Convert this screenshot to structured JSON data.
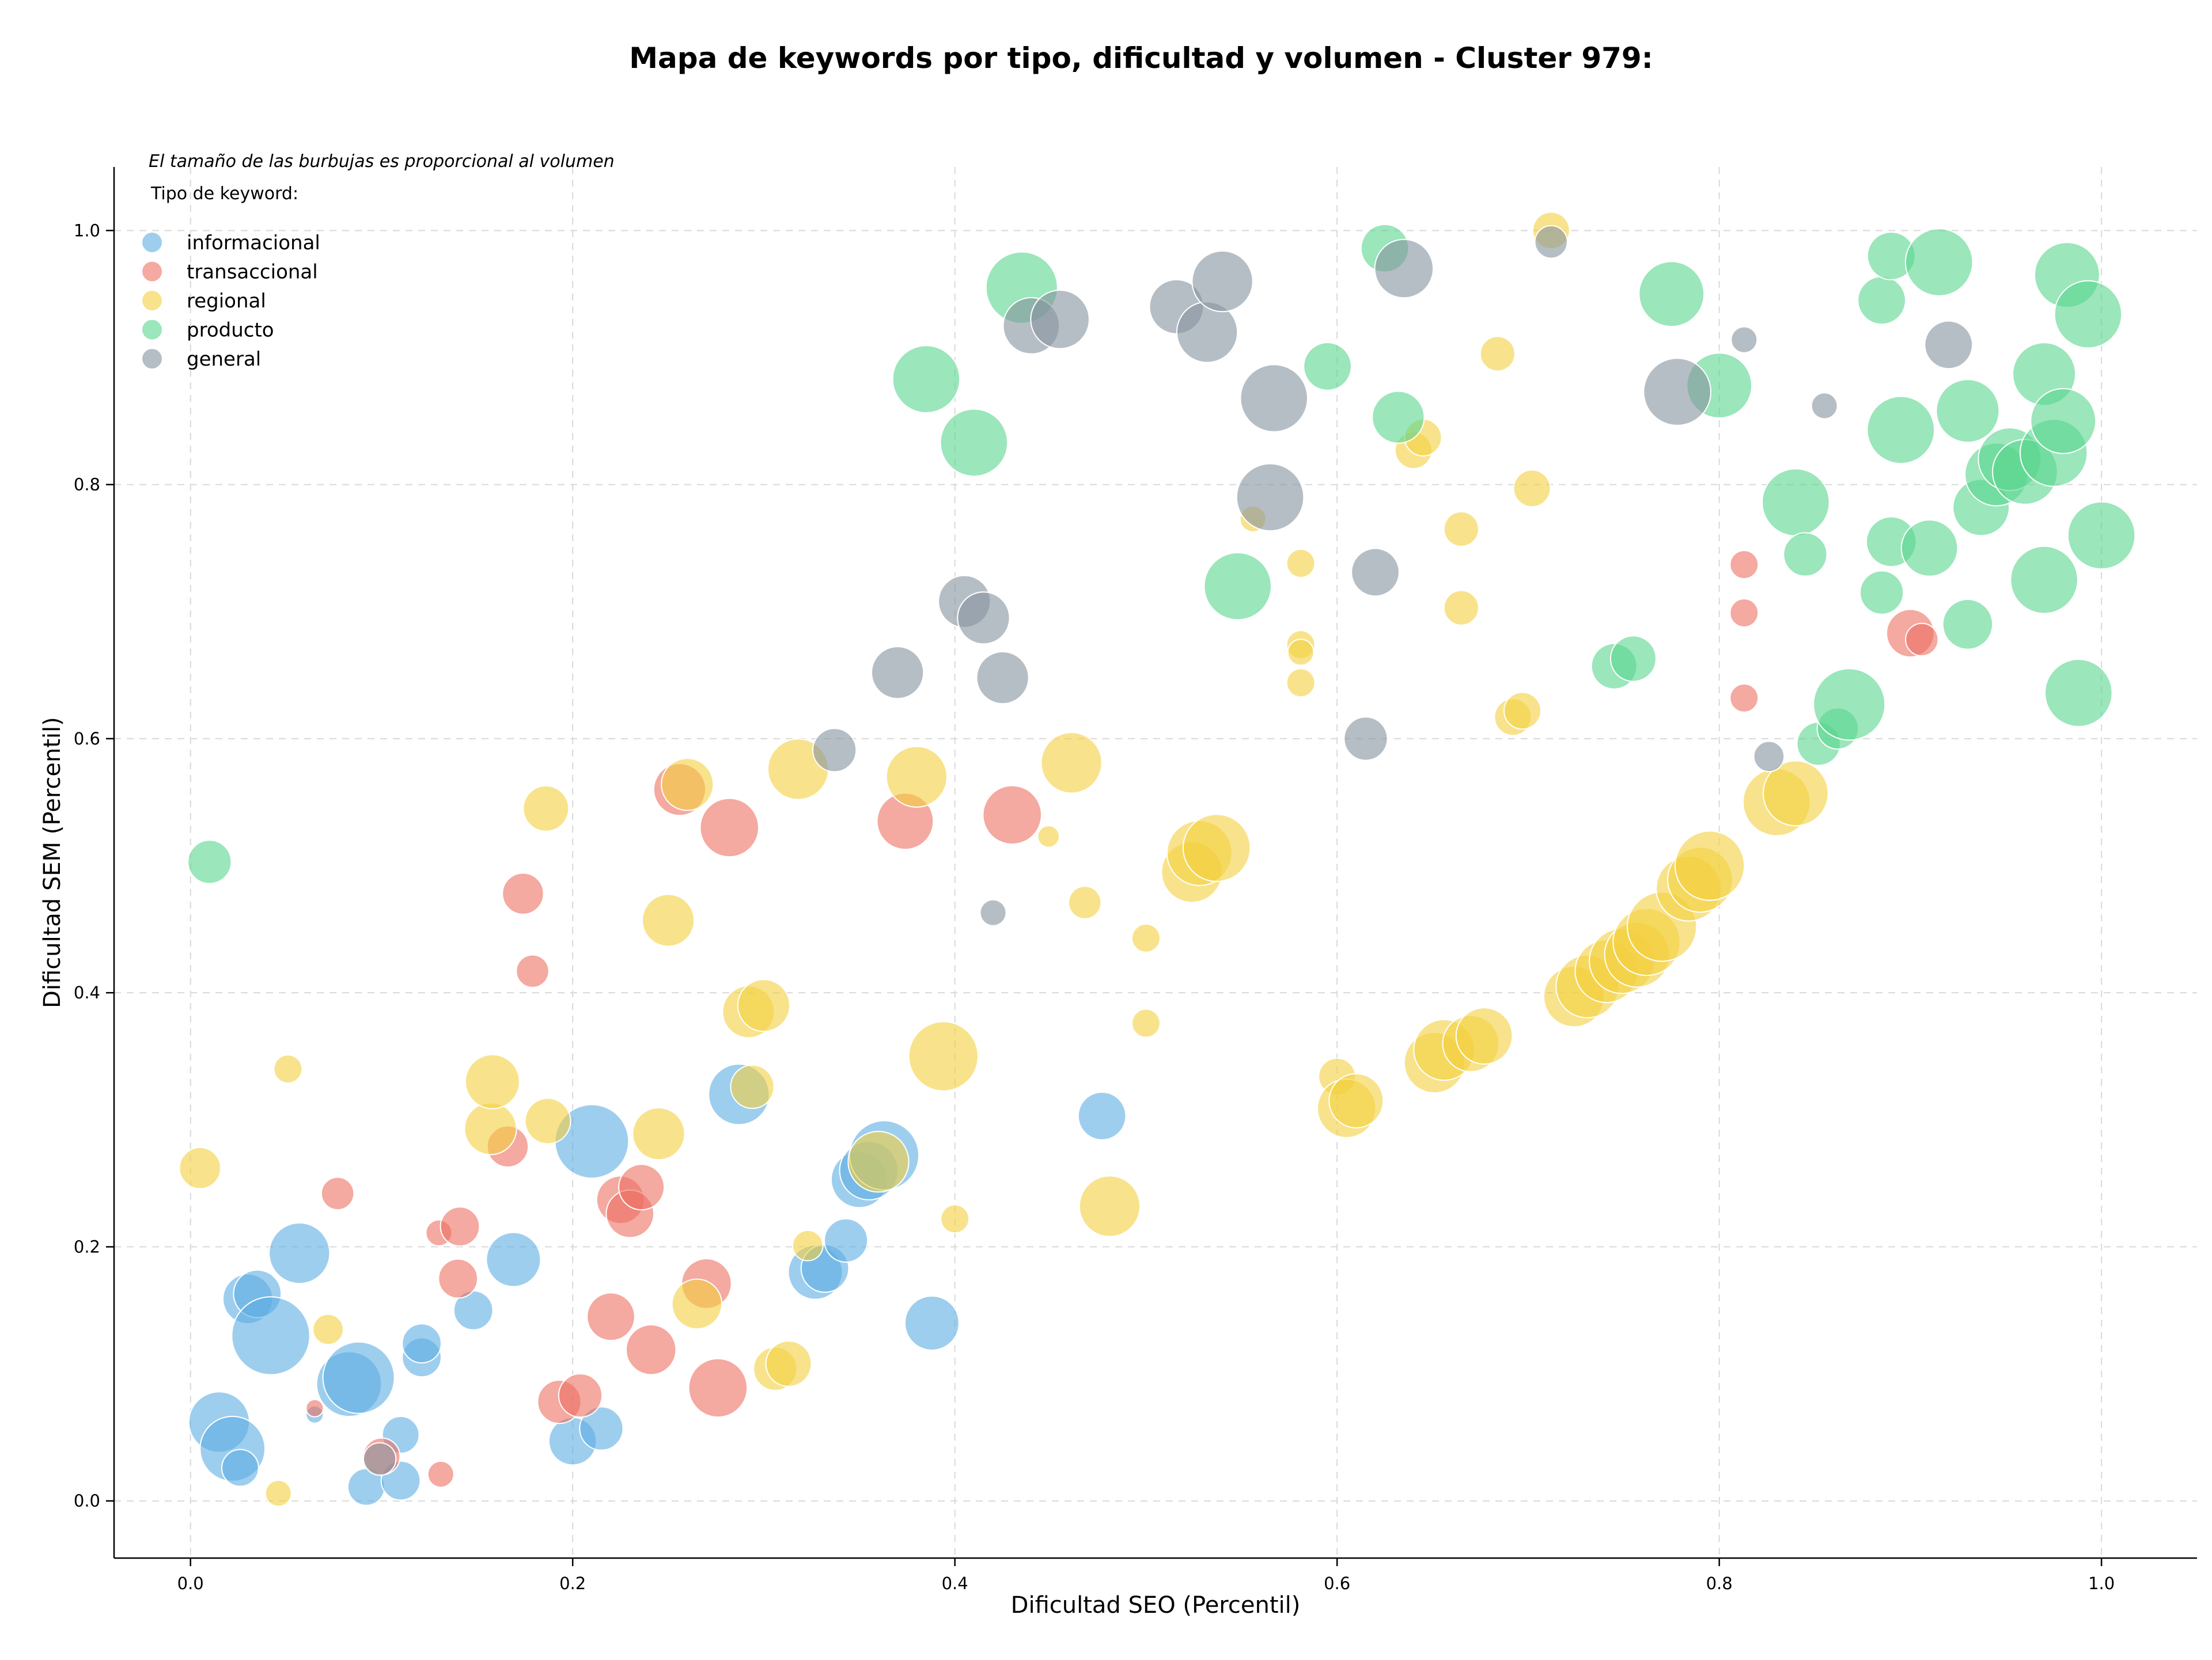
{
  "chart_data": {
    "type": "scatter",
    "title": "Mapa de keywords por tipo, dificultad y volumen - Cluster 979:",
    "xlabel": "Dificultad SEO (Percentil)",
    "ylabel": "Dificultad SEM (Percentil)",
    "xlim": [
      -0.04,
      1.05
    ],
    "ylim": [
      -0.045,
      1.05
    ],
    "x_ticks": [
      "0.0",
      "0.2",
      "0.4",
      "0.6",
      "0.8",
      "1.0"
    ],
    "y_ticks": [
      "0.0",
      "0.2",
      "0.4",
      "0.6",
      "0.8",
      "1.0"
    ],
    "x_tick_values": [
      0,
      0.2,
      0.4,
      0.6,
      0.8,
      1.0
    ],
    "y_tick_values": [
      0,
      0.2,
      0.4,
      0.6,
      0.8,
      1.0
    ],
    "grid": true,
    "size_note": "El tamaño de las burbujas es proporcional al volumen",
    "legend_title": "Tipo de keyword:",
    "legend_position": "top-left",
    "series": [
      {
        "name": "informacional",
        "color": "#5DADE2",
        "points": [
          [
            0.015,
            0.062,
            28
          ],
          [
            0.022,
            0.041,
            30
          ],
          [
            0.026,
            0.026,
            17
          ],
          [
            0.03,
            0.159,
            23
          ],
          [
            0.035,
            0.163,
            22
          ],
          [
            0.042,
            0.13,
            36
          ],
          [
            0.057,
            0.195,
            28
          ],
          [
            0.065,
            0.068,
            8
          ],
          [
            0.083,
            0.092,
            30
          ],
          [
            0.088,
            0.097,
            33
          ],
          [
            0.092,
            0.011,
            17
          ],
          [
            0.11,
            0.052,
            17
          ],
          [
            0.11,
            0.016,
            18
          ],
          [
            0.121,
            0.113,
            18
          ],
          [
            0.121,
            0.124,
            18
          ],
          [
            0.148,
            0.15,
            18
          ],
          [
            0.169,
            0.19,
            25
          ],
          [
            0.2,
            0.047,
            22
          ],
          [
            0.21,
            0.283,
            34
          ],
          [
            0.215,
            0.057,
            20
          ],
          [
            0.287,
            0.32,
            28
          ],
          [
            0.327,
            0.18,
            25
          ],
          [
            0.332,
            0.183,
            22
          ],
          [
            0.343,
            0.205,
            20
          ],
          [
            0.35,
            0.253,
            26
          ],
          [
            0.355,
            0.26,
            27
          ],
          [
            0.363,
            0.272,
            32
          ],
          [
            0.388,
            0.14,
            25
          ],
          [
            0.477,
            0.303,
            22
          ]
        ]
      },
      {
        "name": "transaccional",
        "color": "#EC7063",
        "points": [
          [
            0.065,
            0.073,
            8
          ],
          [
            0.077,
            0.242,
            15
          ],
          [
            0.1,
            0.035,
            17
          ],
          [
            0.13,
            0.211,
            12
          ],
          [
            0.131,
            0.021,
            12
          ],
          [
            0.14,
            0.175,
            18
          ],
          [
            0.141,
            0.216,
            18
          ],
          [
            0.166,
            0.279,
            19
          ],
          [
            0.174,
            0.478,
            19
          ],
          [
            0.179,
            0.417,
            15
          ],
          [
            0.193,
            0.078,
            20
          ],
          [
            0.204,
            0.083,
            20
          ],
          [
            0.22,
            0.145,
            22
          ],
          [
            0.225,
            0.237,
            22
          ],
          [
            0.23,
            0.226,
            22
          ],
          [
            0.236,
            0.247,
            21
          ],
          [
            0.241,
            0.119,
            23
          ],
          [
            0.256,
            0.56,
            24
          ],
          [
            0.27,
            0.171,
            23
          ],
          [
            0.276,
            0.089,
            27
          ],
          [
            0.282,
            0.53,
            27
          ],
          [
            0.374,
            0.535,
            26
          ],
          [
            0.43,
            0.54,
            27
          ],
          [
            0.9,
            0.683,
            22
          ],
          [
            0.906,
            0.678,
            15
          ],
          [
            0.813,
            0.737,
            13
          ],
          [
            0.813,
            0.699,
            13
          ],
          [
            0.813,
            0.632,
            13
          ]
        ]
      },
      {
        "name": "regional",
        "color": "#F4D03F",
        "points": [
          [
            0.005,
            0.262,
            19
          ],
          [
            0.046,
            0.006,
            12
          ],
          [
            0.051,
            0.34,
            13
          ],
          [
            0.072,
            0.135,
            14
          ],
          [
            0.157,
            0.293,
            24
          ],
          [
            0.158,
            0.33,
            25
          ],
          [
            0.186,
            0.545,
            21
          ],
          [
            0.187,
            0.299,
            21
          ],
          [
            0.25,
            0.457,
            24
          ],
          [
            0.245,
            0.289,
            24
          ],
          [
            0.26,
            0.564,
            24
          ],
          [
            0.265,
            0.155,
            23
          ],
          [
            0.292,
            0.385,
            24
          ],
          [
            0.294,
            0.326,
            20
          ],
          [
            0.3,
            0.39,
            24
          ],
          [
            0.306,
            0.104,
            20
          ],
          [
            0.313,
            0.108,
            21
          ],
          [
            0.318,
            0.576,
            28
          ],
          [
            0.323,
            0.201,
            14
          ],
          [
            0.36,
            0.267,
            28
          ],
          [
            0.38,
            0.57,
            28
          ],
          [
            0.394,
            0.35,
            32
          ],
          [
            0.4,
            0.222,
            13
          ],
          [
            0.449,
            0.523,
            10
          ],
          [
            0.461,
            0.581,
            28
          ],
          [
            0.468,
            0.471,
            15
          ],
          [
            0.481,
            0.232,
            28
          ],
          [
            0.5,
            0.443,
            13
          ],
          [
            0.5,
            0.376,
            13
          ],
          [
            0.524,
            0.495,
            28
          ],
          [
            0.528,
            0.51,
            30
          ],
          [
            0.537,
            0.514,
            31
          ],
          [
            0.556,
            0.773,
            12
          ],
          [
            0.581,
            0.738,
            13
          ],
          [
            0.581,
            0.674,
            13
          ],
          [
            0.581,
            0.668,
            12
          ],
          [
            0.581,
            0.644,
            13
          ],
          [
            0.6,
            0.334,
            17
          ],
          [
            0.605,
            0.309,
            27
          ],
          [
            0.61,
            0.315,
            25
          ],
          [
            0.64,
            0.827,
            17
          ],
          [
            0.645,
            0.837,
            17
          ],
          [
            0.651,
            0.345,
            28
          ],
          [
            0.656,
            0.355,
            28
          ],
          [
            0.665,
            0.765,
            16
          ],
          [
            0.665,
            0.703,
            16
          ],
          [
            0.67,
            0.36,
            26
          ],
          [
            0.677,
            0.366,
            26
          ],
          [
            0.684,
            0.903,
            16
          ],
          [
            0.692,
            0.617,
            17
          ],
          [
            0.697,
            0.622,
            17
          ],
          [
            0.702,
            0.797,
            17
          ],
          [
            0.712,
            1.0,
            17
          ],
          [
            0.724,
            0.397,
            28
          ],
          [
            0.731,
            0.405,
            29
          ],
          [
            0.741,
            0.417,
            29
          ],
          [
            0.749,
            0.425,
            30
          ],
          [
            0.757,
            0.43,
            30
          ],
          [
            0.762,
            0.44,
            31
          ],
          [
            0.77,
            0.452,
            32
          ],
          [
            0.784,
            0.482,
            30
          ],
          [
            0.79,
            0.489,
            30
          ],
          [
            0.795,
            0.5,
            32
          ],
          [
            0.83,
            0.55,
            31
          ],
          [
            0.84,
            0.557,
            30
          ]
        ]
      },
      {
        "name": "producto",
        "color": "#58D68D",
        "points": [
          [
            0.01,
            0.503,
            20
          ],
          [
            0.385,
            0.883,
            31
          ],
          [
            0.41,
            0.833,
            31
          ],
          [
            0.435,
            0.955,
            33
          ],
          [
            0.548,
            0.72,
            31
          ],
          [
            0.595,
            0.893,
            22
          ],
          [
            0.625,
            0.986,
            22
          ],
          [
            0.632,
            0.853,
            24
          ],
          [
            0.745,
            0.657,
            21
          ],
          [
            0.755,
            0.663,
            21
          ],
          [
            0.775,
            0.95,
            30
          ],
          [
            0.8,
            0.878,
            30
          ],
          [
            0.84,
            0.786,
            31
          ],
          [
            0.845,
            0.745,
            20
          ],
          [
            0.852,
            0.596,
            20
          ],
          [
            0.862,
            0.608,
            19
          ],
          [
            0.868,
            0.627,
            33
          ],
          [
            0.885,
            0.945,
            22
          ],
          [
            0.89,
            0.98,
            22
          ],
          [
            0.89,
            0.755,
            23
          ],
          [
            0.895,
            0.843,
            31
          ],
          [
            0.91,
            0.75,
            26
          ],
          [
            0.915,
            0.975,
            31
          ],
          [
            0.93,
            0.69,
            23
          ],
          [
            0.93,
            0.858,
            29
          ],
          [
            0.937,
            0.782,
            26
          ],
          [
            0.945,
            0.808,
            29
          ],
          [
            0.952,
            0.82,
            29
          ],
          [
            0.96,
            0.81,
            30
          ],
          [
            0.97,
            0.887,
            29
          ],
          [
            0.97,
            0.725,
            31
          ],
          [
            0.975,
            0.825,
            31
          ],
          [
            0.98,
            0.85,
            30
          ],
          [
            0.982,
            0.965,
            30
          ],
          [
            0.988,
            0.636,
            31
          ],
          [
            0.993,
            0.934,
            31
          ],
          [
            1.0,
            0.76,
            31
          ],
          [
            0.885,
            0.715,
            20
          ]
        ]
      },
      {
        "name": "general",
        "color": "#85929E",
        "points": [
          [
            0.099,
            0.033,
            15
          ],
          [
            0.337,
            0.591,
            20
          ],
          [
            0.37,
            0.652,
            24
          ],
          [
            0.405,
            0.708,
            24
          ],
          [
            0.415,
            0.695,
            24
          ],
          [
            0.425,
            0.648,
            24
          ],
          [
            0.42,
            0.463,
            12
          ],
          [
            0.44,
            0.925,
            26
          ],
          [
            0.455,
            0.93,
            27
          ],
          [
            0.516,
            0.94,
            25
          ],
          [
            0.532,
            0.92,
            28
          ],
          [
            0.54,
            0.96,
            28
          ],
          [
            0.567,
            0.868,
            31
          ],
          [
            0.565,
            0.79,
            31
          ],
          [
            0.615,
            0.6,
            20
          ],
          [
            0.62,
            0.731,
            22
          ],
          [
            0.635,
            0.97,
            27
          ],
          [
            0.712,
            0.991,
            15
          ],
          [
            0.778,
            0.873,
            31
          ],
          [
            0.813,
            0.914,
            12
          ],
          [
            0.826,
            0.586,
            14
          ],
          [
            0.855,
            0.862,
            12
          ],
          [
            0.92,
            0.91,
            22
          ]
        ]
      }
    ]
  }
}
